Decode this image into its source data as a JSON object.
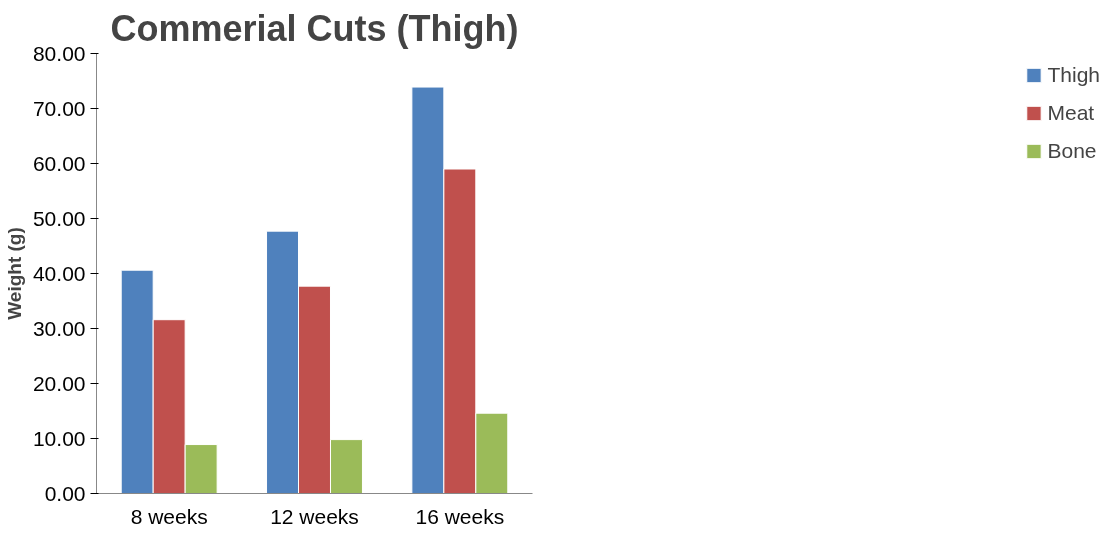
{
  "chart_data": {
    "type": "bar",
    "title": "Commerial Cuts (Thigh)",
    "ylabel": "Weight (g)",
    "categories": [
      "8 weeks",
      "12 weeks",
      "16 weeks"
    ],
    "series": [
      {
        "name": "Thigh",
        "color": "#4f81bd",
        "values": [
          40.6,
          47.7,
          73.9
        ]
      },
      {
        "name": "Meat",
        "color": "#c0504d",
        "values": [
          31.6,
          37.7,
          59.0
        ]
      },
      {
        "name": "Bone",
        "color": "#9bbb59",
        "values": [
          8.9,
          9.8,
          14.6
        ]
      }
    ],
    "ylim": [
      0,
      80
    ],
    "yticks": [
      {
        "value": 0,
        "label": "0.00"
      },
      {
        "value": 10,
        "label": "10.00"
      },
      {
        "value": 20,
        "label": "20.00"
      },
      {
        "value": 30,
        "label": "30.00"
      },
      {
        "value": 40,
        "label": "40.00"
      },
      {
        "value": 50,
        "label": "50.00"
      },
      {
        "value": 60,
        "label": "60.00"
      },
      {
        "value": 70,
        "label": "70.00"
      },
      {
        "value": 80,
        "label": "80.00"
      }
    ],
    "grid": false,
    "legend": "right"
  }
}
